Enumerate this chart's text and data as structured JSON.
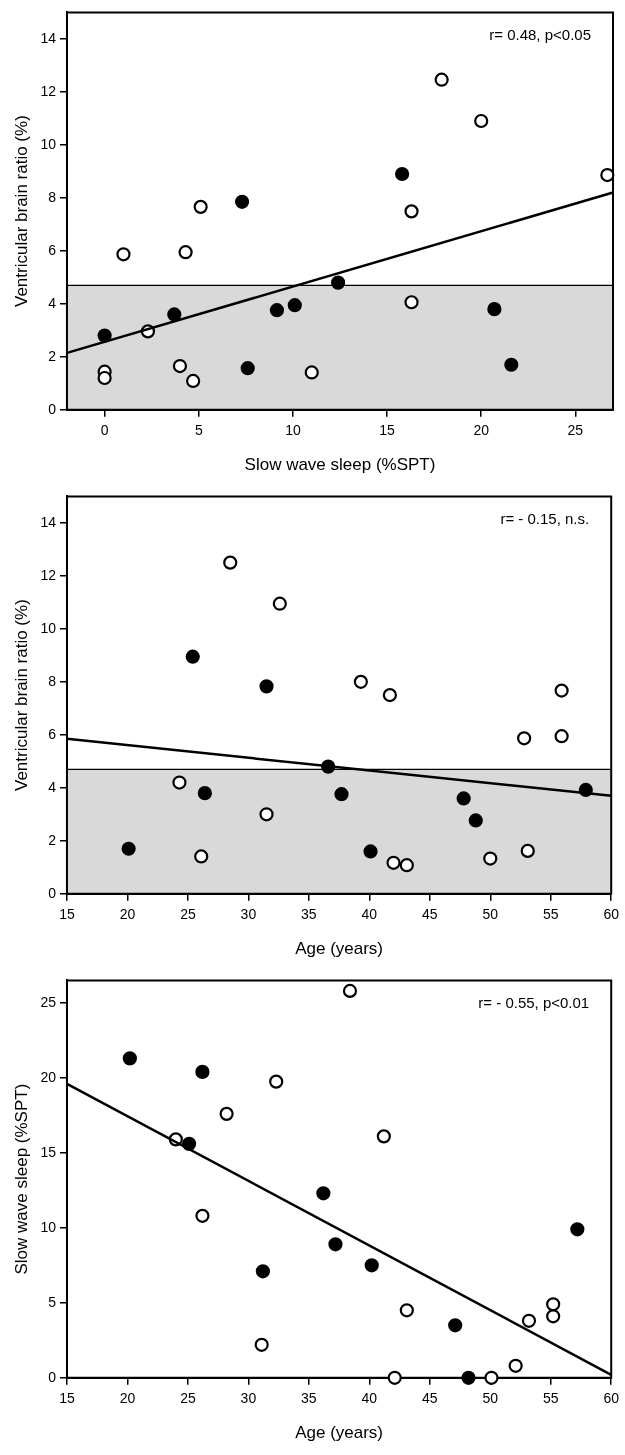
{
  "chart_data": [
    {
      "type": "scatter",
      "xlabel": "Slow wave sleep (%SPT)",
      "ylabel": "Ventricular brain ratio (%)",
      "xlim": [
        -2,
        27
      ],
      "ylim": [
        0,
        15
      ],
      "xticks": [
        0,
        5,
        10,
        15,
        20,
        25
      ],
      "yticks": [
        0,
        2,
        4,
        6,
        8,
        10,
        12,
        14
      ],
      "grid": false,
      "legend": false,
      "marker": "circle",
      "annotations": [
        "r= 0.48, p<0.05"
      ],
      "bands": [
        {
          "axis": "y",
          "from": 0,
          "to": 4.7,
          "color": "#d9d9d9"
        }
      ],
      "ref_lines": [
        {
          "axis": "y",
          "value": 4.7,
          "color": "#000000"
        }
      ],
      "series": [
        {
          "color": "#000000",
          "x": [
            0,
            3.7,
            7.3,
            7.6,
            9.15,
            10.1,
            12.4,
            15.8,
            20.7,
            21.6
          ],
          "values": [
            2.8,
            3.6,
            7.85,
            1.57,
            3.76,
            3.95,
            4.8,
            8.9,
            3.8,
            1.7
          ]
        },
        {
          "color": "#ffffff",
          "x": [
            0,
            0,
            1.0,
            2.3,
            4.0,
            4.3,
            4.7,
            5.1,
            11.0,
            16.3,
            16.3,
            17.9,
            20.0,
            26.7
          ],
          "values": [
            1.44,
            1.2,
            5.87,
            2.96,
            1.65,
            5.95,
            1.09,
            7.66,
            1.41,
            7.49,
            4.06,
            12.46,
            10.9,
            8.86
          ]
        },
        {
          "type": "line",
          "marker": "none",
          "color": "#000000",
          "x": [
            -2,
            27
          ],
          "values": [
            2.15,
            8.2
          ]
        }
      ]
    },
    {
      "type": "scatter",
      "xlabel": "Age (years)",
      "ylabel": "Ventricular brain ratio (%)",
      "xlim": [
        15,
        60
      ],
      "ylim": [
        0,
        15
      ],
      "xticks": [
        15,
        20,
        25,
        30,
        35,
        40,
        45,
        50,
        55,
        60
      ],
      "yticks": [
        0,
        2,
        4,
        6,
        8,
        10,
        12,
        14
      ],
      "grid": false,
      "legend": false,
      "marker": "circle",
      "annotations": [
        "r= - 0.15, n.s."
      ],
      "bands": [
        {
          "axis": "y",
          "from": 0,
          "to": 4.7,
          "color": "#d9d9d9"
        }
      ],
      "ref_lines": [
        {
          "axis": "y",
          "value": 4.7,
          "color": "#000000"
        }
      ],
      "series": [
        {
          "color": "#000000",
          "x": [
            25.4,
            31.5,
            36.6,
            26.4,
            37.7,
            47.8,
            48.8,
            57.9,
            20.1,
            40.1
          ],
          "values": [
            8.95,
            7.83,
            4.8,
            3.8,
            3.76,
            3.6,
            2.77,
            3.92,
            1.7,
            1.6
          ]
        },
        {
          "color": "#ffffff",
          "x": [
            28.5,
            32.6,
            39.3,
            41.7,
            55.9,
            52.8,
            55.9,
            24.3,
            31.5,
            26.1,
            42.0,
            43.1,
            50.0,
            53.1
          ],
          "values": [
            12.5,
            10.95,
            8.0,
            7.5,
            7.67,
            5.87,
            5.95,
            4.2,
            3.0,
            1.41,
            1.17,
            1.08,
            1.33,
            1.62
          ]
        },
        {
          "type": "line",
          "marker": "none",
          "color": "#000000",
          "x": [
            15,
            60
          ],
          "values": [
            5.85,
            3.7
          ]
        }
      ]
    },
    {
      "type": "scatter",
      "xlabel": "Age (years)",
      "ylabel": "Slow wave sleep (%SPT)",
      "xlim": [
        15,
        60
      ],
      "ylim": [
        0,
        26.5
      ],
      "xticks": [
        15,
        20,
        25,
        30,
        35,
        40,
        45,
        50,
        55,
        60
      ],
      "yticks": [
        0,
        5,
        10,
        15,
        20,
        25
      ],
      "grid": false,
      "legend": false,
      "marker": "circle",
      "annotations": [
        "r= - 0.55, p<0.01"
      ],
      "series": [
        {
          "color": "#000000",
          "x": [
            20.2,
            26.2,
            25.1,
            36.2,
            37.2,
            31.2,
            40.2,
            47.1,
            48.2,
            57.2
          ],
          "values": [
            21.3,
            20.4,
            15.6,
            12.3,
            8.9,
            7.1,
            7.5,
            3.5,
            0,
            9.9
          ]
        },
        {
          "color": "#ffffff",
          "x": [
            38.4,
            32.3,
            28.2,
            24.0,
            41.2,
            26.2,
            31.1,
            43.1,
            53.2,
            55.2,
            55.2,
            52.1,
            42.1,
            50.1
          ],
          "values": [
            25.8,
            19.75,
            17.6,
            15.9,
            16.1,
            10.8,
            2.2,
            4.5,
            3.8,
            4.9,
            4.1,
            0.8,
            0,
            0
          ]
        },
        {
          "type": "line",
          "marker": "none",
          "color": "#000000",
          "x": [
            15,
            60
          ],
          "values": [
            19.6,
            0.2
          ]
        }
      ]
    }
  ]
}
